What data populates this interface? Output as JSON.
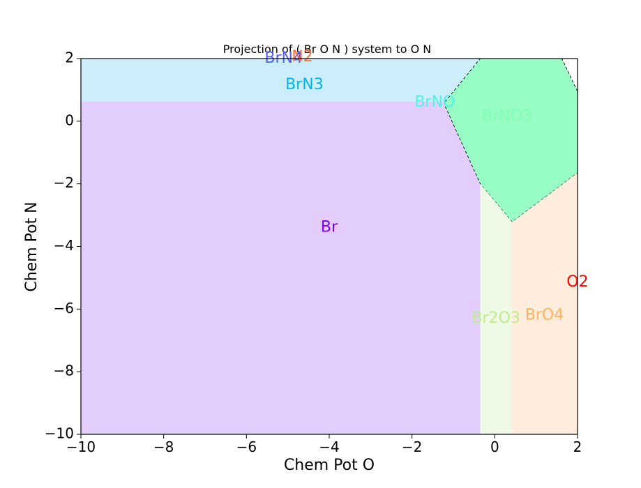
{
  "chart_data": {
    "type": "phase-diagram",
    "title": "Projection of ( Br O N ) system to O N",
    "xlabel": "Chem Pot O",
    "ylabel": "Chem Pot N",
    "xlim": [
      -10,
      2
    ],
    "ylim": [
      -10,
      2
    ],
    "xticks": [
      -10,
      -8,
      -6,
      -4,
      -2,
      0,
      2
    ],
    "yticks": [
      -10,
      -8,
      -6,
      -4,
      -2,
      0,
      2
    ],
    "xtick_labels": [
      "−10",
      "−8",
      "−6",
      "−4",
      "−2",
      "0",
      "2"
    ],
    "ytick_labels": [
      "−10",
      "−8",
      "−6",
      "−4",
      "−2",
      "0",
      "2"
    ],
    "regions": [
      {
        "name": "Br",
        "color": "#e2cdfd",
        "label_color": "#8000ff",
        "label_at": [
          -4.0,
          -3.4
        ],
        "polygon": [
          [
            -10,
            -10
          ],
          [
            -0.35,
            -10
          ],
          [
            -0.35,
            -2.0
          ],
          [
            -1.2,
            0.48
          ],
          [
            -1.2,
            0.62
          ],
          [
            -10,
            0.62
          ]
        ]
      },
      {
        "name": "BrN3",
        "color": "#cceefa",
        "label_color": "#00b5eb",
        "label_at": [
          -4.6,
          1.15
        ],
        "polygon": [
          [
            -10,
            0.62
          ],
          [
            -1.2,
            0.62
          ],
          [
            -0.35,
            2.0
          ],
          [
            -10,
            2.0
          ]
        ]
      },
      {
        "name": "BrNO3",
        "color": "#98fdc4",
        "label_color": "#80ffb4",
        "label_at": [
          0.3,
          0.15
        ],
        "polygon": [
          [
            -1.2,
            0.62
          ],
          [
            -0.35,
            2.0
          ],
          [
            1.62,
            2.0
          ],
          [
            2.0,
            0.95
          ],
          [
            2.0,
            -1.65
          ],
          [
            0.42,
            -3.22
          ],
          [
            -0.35,
            -2.0
          ],
          [
            -1.2,
            0.48
          ]
        ],
        "boundary": "dashed"
      },
      {
        "name": "Br2O3",
        "color": "#eefae5",
        "label_color": "#c0eb8d",
        "label_at": [
          0.03,
          -6.3
        ],
        "polygon": [
          [
            -0.35,
            -10
          ],
          [
            0.42,
            -10
          ],
          [
            0.42,
            -3.22
          ],
          [
            -0.35,
            -2.0
          ]
        ]
      },
      {
        "name": "BrO4",
        "color": "#feeddc",
        "label_color": "#ffb360",
        "label_at": [
          1.2,
          -6.2
        ],
        "polygon": [
          [
            0.42,
            -10
          ],
          [
            2.0,
            -10
          ],
          [
            2.0,
            -1.65
          ],
          [
            0.42,
            -3.22
          ]
        ]
      }
    ],
    "labels": [
      {
        "name": "BrNO",
        "color": "#4df4e0",
        "at": [
          -1.45,
          0.6
        ]
      },
      {
        "name": "BrN4",
        "color": "#5560f6",
        "at": [
          -5.1,
          2.0
        ]
      },
      {
        "name": "N2",
        "color": "#ff6e38",
        "at": [
          -4.65,
          2.05
        ]
      },
      {
        "name": "O2",
        "color": "#ff0000",
        "at": [
          2.0,
          -5.15
        ]
      }
    ]
  }
}
